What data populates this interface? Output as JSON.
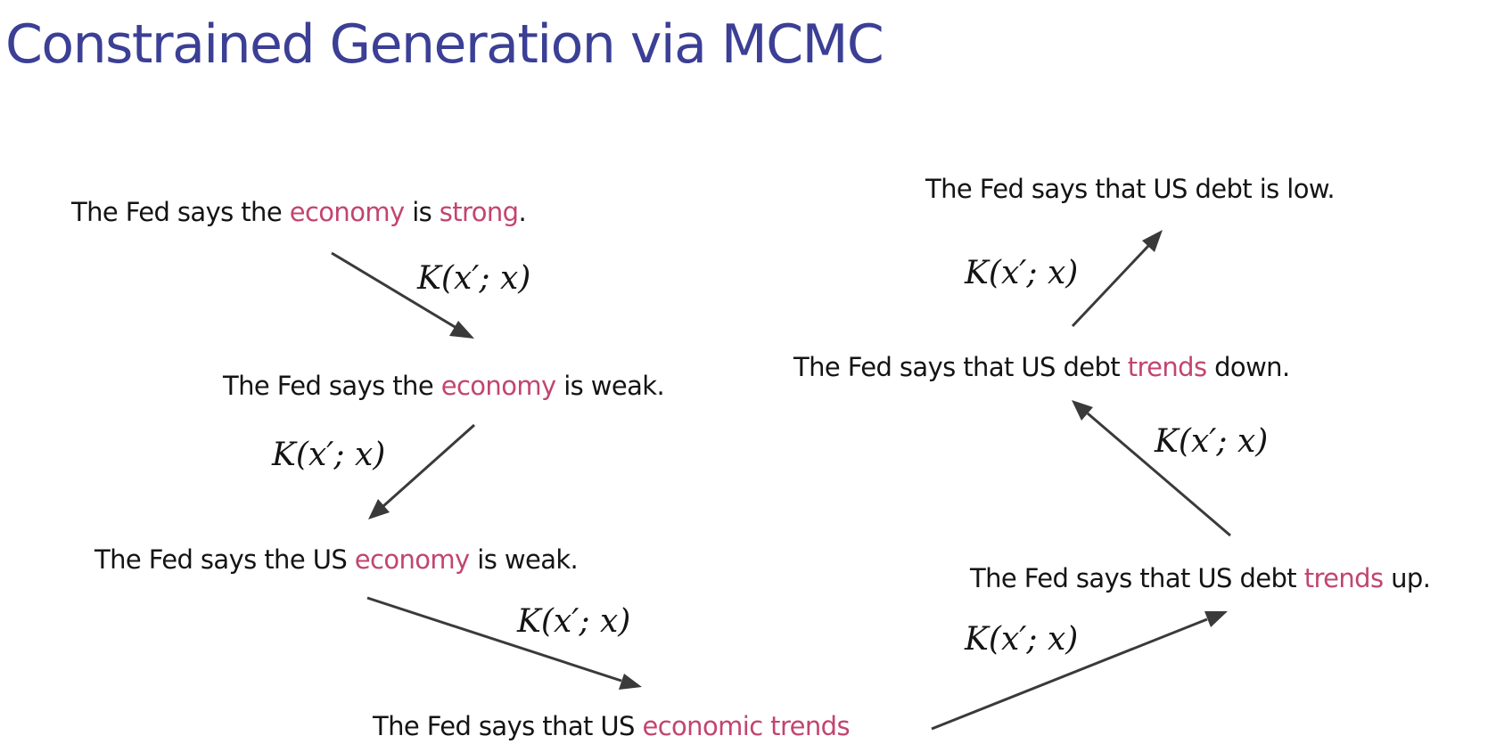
{
  "title": "Constrained Generation via MCMC",
  "kernel_label": "K(x′; x)",
  "sentences": [
    {
      "id": "s1",
      "parts": [
        {
          "text": "The Fed says the ",
          "highlight": false
        },
        {
          "text": "economy",
          "highlight": true
        },
        {
          "text": " is ",
          "highlight": false
        },
        {
          "text": "strong",
          "highlight": true
        },
        {
          "text": ".",
          "highlight": false
        }
      ]
    },
    {
      "id": "s2",
      "parts": [
        {
          "text": "The Fed says the ",
          "highlight": false
        },
        {
          "text": "economy",
          "highlight": true
        },
        {
          "text": " is weak.",
          "highlight": false
        }
      ]
    },
    {
      "id": "s3",
      "parts": [
        {
          "text": "The Fed says the US ",
          "highlight": false
        },
        {
          "text": "economy",
          "highlight": true
        },
        {
          "text": " is weak.",
          "highlight": false
        }
      ]
    },
    {
      "id": "s4",
      "parts": [
        {
          "text": "The Fed says that US ",
          "highlight": false
        },
        {
          "text": "economic trends",
          "highlight": true
        }
      ]
    },
    {
      "id": "s5",
      "parts": [
        {
          "text": "The Fed says that US debt ",
          "highlight": false
        },
        {
          "text": "trends",
          "highlight": true
        },
        {
          "text": " up.",
          "highlight": false
        }
      ]
    },
    {
      "id": "s6",
      "parts": [
        {
          "text": "The Fed says that US debt ",
          "highlight": false
        },
        {
          "text": "trends",
          "highlight": true
        },
        {
          "text": " down.",
          "highlight": false
        }
      ]
    },
    {
      "id": "s7",
      "parts": [
        {
          "text": "The Fed says that US debt is low.",
          "highlight": false
        }
      ]
    }
  ],
  "colors": {
    "title": "#3b3f95",
    "text": "#141414",
    "highlight": "#c2456f",
    "arrow": "#3a3a3a"
  }
}
